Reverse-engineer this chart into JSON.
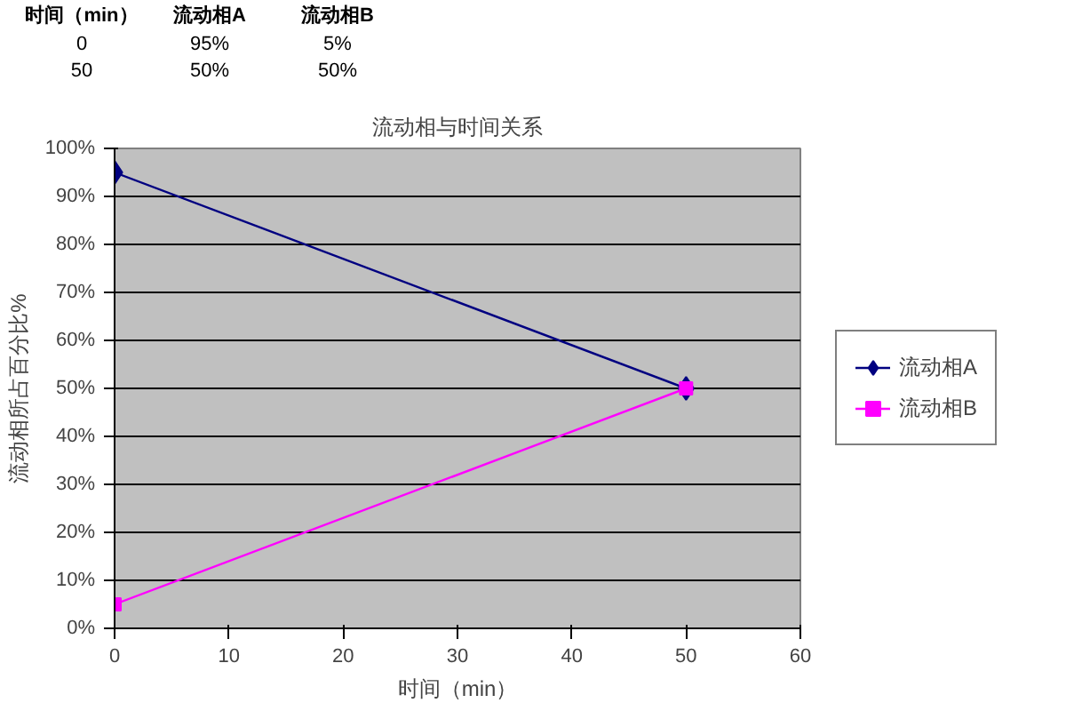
{
  "chart_data": {
    "type": "line",
    "title": "流动相与时间关系",
    "xlabel": "时间（min）",
    "ylabel": "流动相所占百分比%",
    "annotations": [
      "时间（min）",
      "流动相A",
      "流动相B",
      "0",
      "95%",
      "5%",
      "50",
      "50%",
      "50%"
    ],
    "x": [
      0,
      50
    ],
    "series": [
      {
        "name": "流动相A",
        "color": "#000080",
        "marker": "diamond",
        "values": [
          95,
          50
        ]
      },
      {
        "name": "流动相B",
        "color": "#ff00ff",
        "marker": "square",
        "values": [
          5,
          50
        ]
      }
    ],
    "xlim": [
      0,
      60
    ],
    "xticks": [
      0,
      10,
      20,
      30,
      40,
      50,
      60
    ],
    "ylim": [
      0,
      100
    ],
    "yticks": [
      {
        "value": 0,
        "label": "0%"
      },
      {
        "value": 10,
        "label": "10%"
      },
      {
        "value": 20,
        "label": "20%"
      },
      {
        "value": 30,
        "label": "30%"
      },
      {
        "value": 40,
        "label": "40%"
      },
      {
        "value": 50,
        "label": "50%"
      },
      {
        "value": 60,
        "label": "60%"
      },
      {
        "value": 70,
        "label": "70%"
      },
      {
        "value": 80,
        "label": "80%"
      },
      {
        "value": 90,
        "label": "90%"
      },
      {
        "value": 100,
        "label": "100%"
      }
    ],
    "grid": "y",
    "legend": "right",
    "line_style": "solid"
  }
}
